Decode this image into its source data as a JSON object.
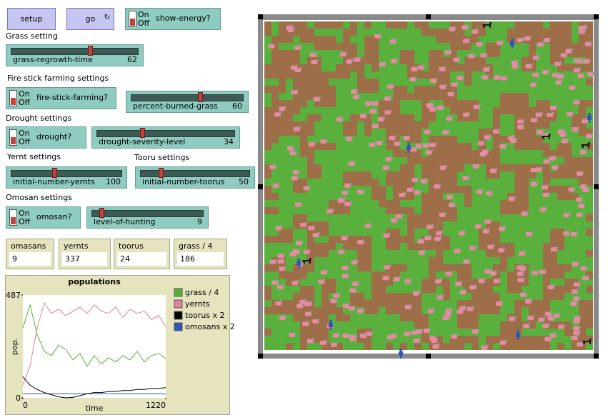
{
  "controls": {
    "setup_button": "setup",
    "go_button": "go",
    "switches": [
      {
        "on": "On",
        "off": "Off",
        "label": "show-energy?"
      },
      {
        "on": "On",
        "off": "Off",
        "label": "fire-stick-farming?"
      },
      {
        "on": "On",
        "off": "Off",
        "label": "drought?"
      },
      {
        "on": "On",
        "off": "Off",
        "label": "omosan?"
      }
    ],
    "section_labels": [
      "Grass setting",
      "Fire stick farming settings",
      "Drought settings",
      "Yernt settings",
      "Tooru settings",
      "Omosan settings"
    ],
    "sliders": [
      {
        "label": "grass-regrowth-time",
        "value": 62
      },
      {
        "label": "percent-burned-grass",
        "value": 60
      },
      {
        "label": "drought-severity-level",
        "value": 34
      },
      {
        "label": "initial-number-yernts",
        "value": 100
      },
      {
        "label": "initial-number-toorus",
        "value": 50
      },
      {
        "label": "level-of-hunting",
        "value": 9
      }
    ],
    "monitors": [
      {
        "label": "omasans",
        "value": 9
      },
      {
        "label": "yernts",
        "value": 337
      },
      {
        "label": "toorus",
        "value": 24
      },
      {
        "label": "grass / 4",
        "value": 186
      }
    ]
  },
  "chart_data": {
    "type": "line",
    "title": "populations",
    "x_label": "time",
    "y_label": "pop.",
    "x": [
      0,
      61,
      122,
      183,
      244,
      305,
      366,
      427,
      488,
      549,
      610,
      671,
      732,
      793,
      854,
      915,
      976,
      1037,
      1098,
      1159,
      1220
    ],
    "series": [
      {
        "name": "grass / 4",
        "color": "#59b03c",
        "values": [
          330,
          440,
          300,
          220,
          200,
          250,
          230,
          180,
          210,
          150,
          200,
          160,
          190,
          170,
          200,
          180,
          220,
          170,
          200,
          210,
          186
        ]
      },
      {
        "name": "yernts",
        "color": "#e0839a",
        "values": [
          60,
          150,
          330,
          450,
          400,
          420,
          390,
          410,
          430,
          400,
          440,
          410,
          400,
          430,
          380,
          420,
          400,
          410,
          370,
          390,
          337
        ]
      },
      {
        "name": "toorus x 2",
        "color": "#000000",
        "values": [
          100,
          60,
          40,
          25,
          15,
          5,
          0,
          2,
          10,
          20,
          25,
          25,
          30,
          30,
          35,
          35,
          40,
          40,
          45,
          45,
          48
        ]
      },
      {
        "name": "omosans x 2",
        "color": "#3455b8",
        "values": [
          20,
          20,
          20,
          20,
          20,
          20,
          20,
          20,
          20,
          20,
          20,
          20,
          20,
          20,
          20,
          20,
          20,
          20,
          20,
          20,
          18
        ]
      }
    ],
    "xlim": [
      0,
      1220
    ],
    "ylim": [
      0,
      487
    ],
    "xticks": [
      0,
      1220
    ],
    "yticks": [
      0,
      487
    ]
  }
}
